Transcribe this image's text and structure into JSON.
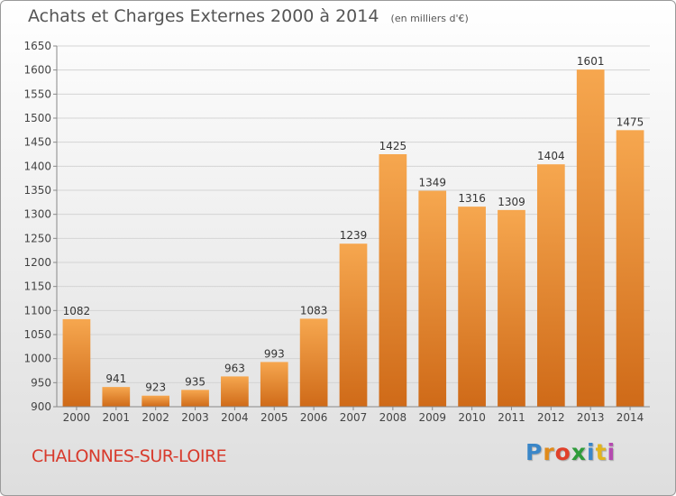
{
  "header": {
    "title": "Achats et Charges Externes 2000 à 2014",
    "unit": "(en milliers d'€)"
  },
  "footer": {
    "commune": "CHALONNES-SUR-LOIRE",
    "logo_letters": [
      "P",
      "r",
      "o",
      "x",
      "i",
      "t",
      "i"
    ]
  },
  "colors": {
    "bar_light": "#f6a74f",
    "bar_dark": "#cf6a18",
    "commune_text": "#d83a2c",
    "grid": "#d4d4d4"
  },
  "chart_data": {
    "type": "bar",
    "title": "Achats et Charges Externes 2000 à 2014",
    "xlabel": "",
    "ylabel": "",
    "categories": [
      "2000",
      "2001",
      "2002",
      "2003",
      "2004",
      "2005",
      "2006",
      "2007",
      "2008",
      "2009",
      "2010",
      "2011",
      "2012",
      "2013",
      "2014"
    ],
    "values": [
      1082,
      941,
      923,
      935,
      963,
      993,
      1083,
      1239,
      1425,
      1349,
      1316,
      1309,
      1404,
      1601,
      1475
    ],
    "data_labels": [
      "1082",
      "941",
      "923",
      "935",
      "963",
      "993",
      "1083",
      "1239",
      "1425",
      "1349",
      "1316",
      "1309",
      "1404",
      "1601",
      "1475"
    ],
    "ylim": [
      900,
      1650
    ],
    "yticks": [
      "900",
      "950",
      "1000",
      "1050",
      "1100",
      "1150",
      "1200",
      "1250",
      "1300",
      "1350",
      "1400",
      "1450",
      "1500",
      "1550",
      "1600",
      "1650"
    ],
    "grid": true,
    "legend": "none"
  }
}
